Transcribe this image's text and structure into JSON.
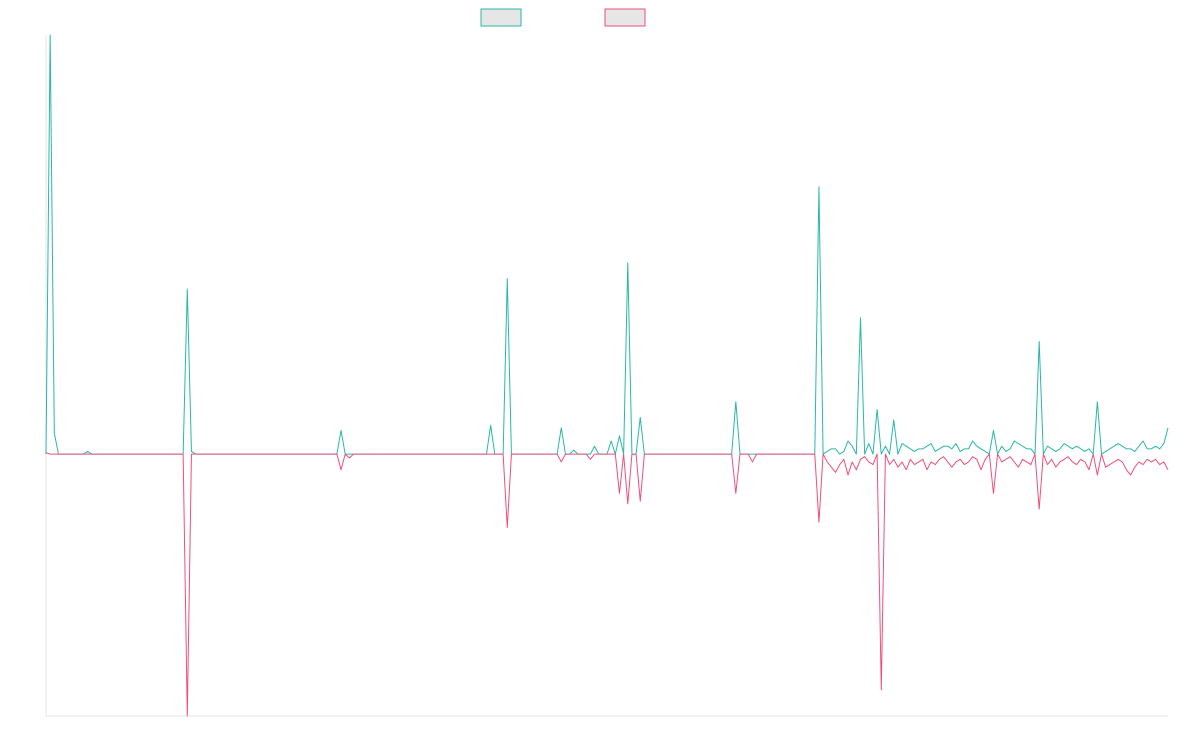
{
  "chart_data": {
    "type": "line",
    "title": "",
    "xlabel": "",
    "ylabel": "",
    "grid": false,
    "legend_position": "top-center",
    "ylim": [
      -100,
      160
    ],
    "x_count": 271,
    "series": [
      {
        "color": "#2ab7a9",
        "spikes": [
          [
            0,
            0.0
          ],
          [
            1,
            160
          ],
          [
            2,
            8
          ],
          [
            10,
            1.0
          ],
          [
            33,
            0
          ],
          [
            34,
            63
          ],
          [
            35,
            1
          ],
          [
            43,
            0
          ],
          [
            70,
            0
          ],
          [
            71,
            9
          ],
          [
            72,
            0
          ],
          [
            73,
            0
          ],
          [
            74,
            0
          ],
          [
            75,
            0
          ],
          [
            106,
            0
          ],
          [
            107,
            11
          ],
          [
            108,
            0
          ],
          [
            110,
            0
          ],
          [
            111,
            67
          ],
          [
            112,
            0
          ],
          [
            123,
            0
          ],
          [
            124,
            10
          ],
          [
            125,
            0
          ],
          [
            127,
            1.5
          ],
          [
            129,
            0
          ],
          [
            130,
            0
          ],
          [
            131,
            0
          ],
          [
            132,
            3
          ],
          [
            134,
            0
          ],
          [
            136,
            5
          ],
          [
            137,
            0
          ],
          [
            138,
            7
          ],
          [
            139,
            0
          ],
          [
            140,
            73
          ],
          [
            141,
            0
          ],
          [
            143,
            14
          ],
          [
            144,
            0
          ],
          [
            165,
            0
          ],
          [
            166,
            20
          ],
          [
            167,
            0
          ],
          [
            174,
            0
          ],
          [
            185,
            0
          ],
          [
            186,
            102
          ],
          [
            187,
            0
          ],
          [
            190,
            2
          ],
          [
            191,
            0
          ],
          [
            193,
            5
          ],
          [
            194,
            3
          ],
          [
            195,
            0
          ],
          [
            196,
            52
          ],
          [
            197,
            0
          ],
          [
            199,
            0
          ],
          [
            200,
            17
          ],
          [
            201,
            0
          ],
          [
            203,
            0
          ],
          [
            204,
            13
          ],
          [
            205,
            0
          ],
          [
            227,
            0
          ],
          [
            228,
            9
          ],
          [
            229,
            0
          ],
          [
            238,
            0
          ],
          [
            239,
            43
          ],
          [
            240,
            0
          ],
          [
            252,
            0
          ],
          [
            253,
            20
          ],
          [
            254,
            0
          ]
        ],
        "noise_start": 186,
        "noise_values": [
          2,
          2,
          1,
          2,
          5,
          3,
          1,
          2,
          3,
          1,
          2,
          2,
          4,
          5,
          1,
          2,
          3,
          2,
          1,
          2,
          4,
          3,
          2,
          1,
          2,
          2,
          3,
          4,
          1,
          2,
          3,
          3,
          2,
          4,
          1,
          2,
          2,
          5,
          3,
          2,
          1,
          2,
          3,
          4,
          3,
          1,
          2,
          5,
          4,
          3,
          2,
          2,
          1,
          3,
          5,
          3,
          2,
          1,
          2,
          4,
          3,
          2,
          3,
          2,
          1,
          2,
          3,
          4,
          2,
          1,
          2,
          3,
          4,
          3,
          2,
          2,
          1,
          3,
          5,
          2,
          2,
          3,
          2,
          4,
          10
        ]
      },
      {
        "color": "#ef4f7b",
        "spikes": [
          [
            0,
            0.5
          ],
          [
            1,
            0
          ],
          [
            33,
            0
          ],
          [
            34,
            -100
          ],
          [
            35,
            0
          ],
          [
            70,
            0
          ],
          [
            71,
            -6
          ],
          [
            72,
            0
          ],
          [
            73,
            -1.5
          ],
          [
            74,
            0
          ],
          [
            110,
            0
          ],
          [
            111,
            -28
          ],
          [
            112,
            0
          ],
          [
            123,
            0
          ],
          [
            124,
            -3
          ],
          [
            125,
            0
          ],
          [
            130,
            0
          ],
          [
            131,
            -2
          ],
          [
            132,
            0
          ],
          [
            137,
            0
          ],
          [
            138,
            -15
          ],
          [
            139,
            0
          ],
          [
            140,
            -19
          ],
          [
            141,
            0
          ],
          [
            143,
            -18
          ],
          [
            144,
            0
          ],
          [
            165,
            0
          ],
          [
            166,
            -15
          ],
          [
            167,
            0
          ],
          [
            169,
            0
          ],
          [
            170,
            -3
          ],
          [
            171,
            0
          ],
          [
            174,
            0
          ],
          [
            185,
            0
          ],
          [
            186,
            -26
          ],
          [
            187,
            0
          ],
          [
            200,
            0
          ],
          [
            201,
            -90
          ],
          [
            202,
            0
          ],
          [
            227,
            0
          ],
          [
            228,
            -15
          ],
          [
            229,
            0
          ],
          [
            238,
            0
          ],
          [
            239,
            -21
          ],
          [
            240,
            0
          ],
          [
            252,
            0
          ],
          [
            253,
            -8
          ],
          [
            254,
            0
          ]
        ],
        "noise_start": 186,
        "noise_values": [
          -1,
          -2,
          -3,
          -5,
          -7,
          -4,
          -2,
          -8,
          -3,
          -6,
          -2,
          -1,
          -3,
          -4,
          -2,
          -1,
          -3,
          -4,
          -2,
          -5,
          -3,
          -6,
          -2,
          -4,
          -3,
          -2,
          -6,
          -3,
          -4,
          -2,
          -1,
          -3,
          -5,
          -3,
          -2,
          -4,
          -3,
          -1,
          -2,
          -6,
          -2,
          -3,
          -2,
          -4,
          -3,
          -2,
          -1,
          -3,
          -5,
          -2,
          -3,
          -4,
          -2,
          -1,
          -3,
          -4,
          -2,
          -5,
          -3,
          -2,
          -1,
          -3,
          -4,
          -2,
          -3,
          -6,
          -4,
          -2,
          -3,
          -5,
          -4,
          -3,
          -2,
          -3,
          -6,
          -8,
          -5,
          -3,
          -4,
          -2,
          -3,
          -2,
          -4,
          -3,
          -6
        ]
      }
    ]
  }
}
